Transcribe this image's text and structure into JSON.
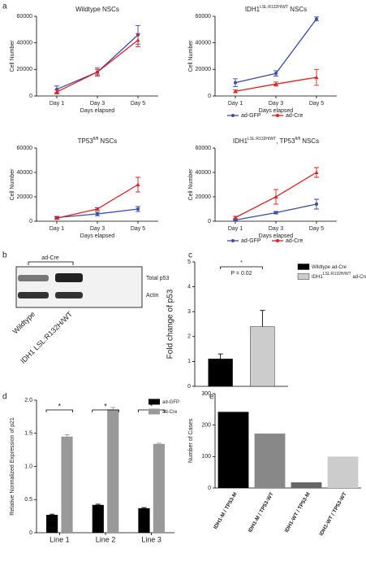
{
  "panel_labels": [
    "a",
    "b",
    "c",
    "d",
    "e"
  ],
  "blot": {
    "group_label": "ad-Cre",
    "bands": [
      "Total p53",
      "Actin"
    ],
    "lanes": [
      "Wildtype",
      "IDH1 LSL:R132H/WT"
    ]
  },
  "chart_data": [
    {
      "type": "line",
      "title": [
        "Wildtype NSCs"
      ],
      "categories": [
        "Day 1",
        "Day 3",
        "Day 5"
      ],
      "ylim": [
        0,
        60000
      ],
      "yticks": [
        0,
        20000,
        40000,
        60000
      ],
      "y_label": "Cell Number",
      "x_label": "Days elapsed",
      "series": [
        {
          "name": "ad-GFP",
          "color": "#3b4ea6",
          "values": [
            5000,
            18000,
            46000
          ],
          "errors": [
            2500,
            2000,
            7000
          ]
        },
        {
          "name": "ad-Cre",
          "color": "#e02020",
          "values": [
            3000,
            18000,
            42000
          ],
          "errors": [
            1500,
            3000,
            5000
          ]
        }
      ]
    },
    {
      "type": "line",
      "title": [
        "IDH1",
        "LSL:R132H/WT",
        " NSCs"
      ],
      "categories": [
        "Day 1",
        "Day 3",
        "Day 5"
      ],
      "ylim": [
        0,
        60000
      ],
      "yticks": [
        0,
        20000,
        40000,
        60000
      ],
      "y_label": "Cell Number",
      "x_label": "Days elapsed",
      "legend": "below",
      "series": [
        {
          "name": "ad-GFP",
          "color": "#3b4ea6",
          "values": [
            10000,
            17000,
            58000
          ],
          "errors": [
            3000,
            2000,
            1500
          ]
        },
        {
          "name": "ad-Cre",
          "color": "#e02020",
          "values": [
            3500,
            9000,
            14000
          ],
          "errors": [
            1000,
            1500,
            6000
          ]
        }
      ]
    },
    {
      "type": "line",
      "title": [
        "TP53",
        "fl/fl",
        " NSCs"
      ],
      "categories": [
        "Day 1",
        "Day 3",
        "Day 5"
      ],
      "ylim": [
        0,
        60000
      ],
      "yticks": [
        0,
        20000,
        40000,
        60000
      ],
      "y_label": "Cell Number",
      "x_label": "Days elapsed",
      "series": [
        {
          "name": "ad-GFP",
          "color": "#3b4ea6",
          "values": [
            3000,
            6000,
            10000
          ],
          "errors": [
            1000,
            1500,
            2000
          ]
        },
        {
          "name": "ad-Cre",
          "color": "#e02020",
          "values": [
            2500,
            10000,
            30000
          ],
          "errors": [
            800,
            1000,
            6000
          ]
        }
      ]
    },
    {
      "type": "line",
      "title": [
        "IDH1",
        "LSL:R132H/WT",
        ", TP53",
        "fl/fl",
        " NSCs"
      ],
      "categories": [
        "Day 1",
        "Day 3",
        "Day 5"
      ],
      "ylim": [
        0,
        60000
      ],
      "yticks": [
        0,
        20000,
        40000,
        60000
      ],
      "y_label": "Cell Number",
      "x_label": "Days elapsed",
      "legend": "below",
      "series": [
        {
          "name": "ad-GFP",
          "color": "#3b4ea6",
          "values": [
            1000,
            7000,
            14000
          ],
          "errors": [
            500,
            1000,
            4000
          ]
        },
        {
          "name": "ad-Cre",
          "color": "#e02020",
          "values": [
            3000,
            20000,
            40000
          ],
          "errors": [
            1000,
            6000,
            4000
          ]
        }
      ]
    },
    {
      "type": "bar",
      "categories": [
        null
      ],
      "ylim": [
        0,
        5
      ],
      "yticks": [
        0,
        1,
        2,
        3,
        4,
        5
      ],
      "y_label": "Fold change of p53",
      "legend": "right",
      "annotations": [
        "*",
        "P = 0.02"
      ],
      "series": [
        {
          "name": [
            "Wildtype ad-Cre"
          ],
          "color": "#000000",
          "values": [
            1.1
          ],
          "errors": [
            0.2
          ]
        },
        {
          "name": [
            "IDH1",
            "LSL:R132H/WT",
            " ad-Cre"
          ],
          "color": "#cccccc",
          "values": [
            2.4
          ],
          "errors": [
            0.65
          ]
        }
      ]
    },
    {
      "type": "bar",
      "categories": [
        "Line 1",
        "Line 2",
        "Line 3"
      ],
      "ylim": [
        0,
        2
      ],
      "yticks": [
        0,
        0.5,
        {
          "value": 1,
          "label": "1.0"
        },
        1.5,
        {
          "value": 2,
          "label": "2.0"
        }
      ],
      "y_label": "Relative Normalized Expression of p21",
      "legend": "upper right",
      "annotations": [
        "*",
        "*",
        "*"
      ],
      "series": [
        {
          "name": [
            "ad-GFP"
          ],
          "color": "#000000",
          "values": [
            0.27,
            0.42,
            0.37
          ],
          "errors": [
            0.01,
            0.01,
            0.01
          ]
        },
        {
          "name": [
            "ad-Cre"
          ],
          "color": "#999999",
          "values": [
            1.45,
            1.86,
            1.34
          ],
          "errors": [
            0.03,
            0.03,
            0.01
          ]
        }
      ]
    },
    {
      "type": "bar",
      "categories": [
        "IDH1-M / TP53-M",
        "IDH1-M / TP53-WT",
        "IDH1-WT / TP53-M",
        "IDH1-WT / TP53-WT"
      ],
      "ylim": [
        0,
        300
      ],
      "yticks": [
        0,
        100,
        200,
        300
      ],
      "y_label": "Number of Cases",
      "values": [
        242,
        173,
        18,
        100
      ],
      "colors": [
        "#000000",
        "#888888",
        "#666666",
        "#cccccc"
      ]
    }
  ]
}
